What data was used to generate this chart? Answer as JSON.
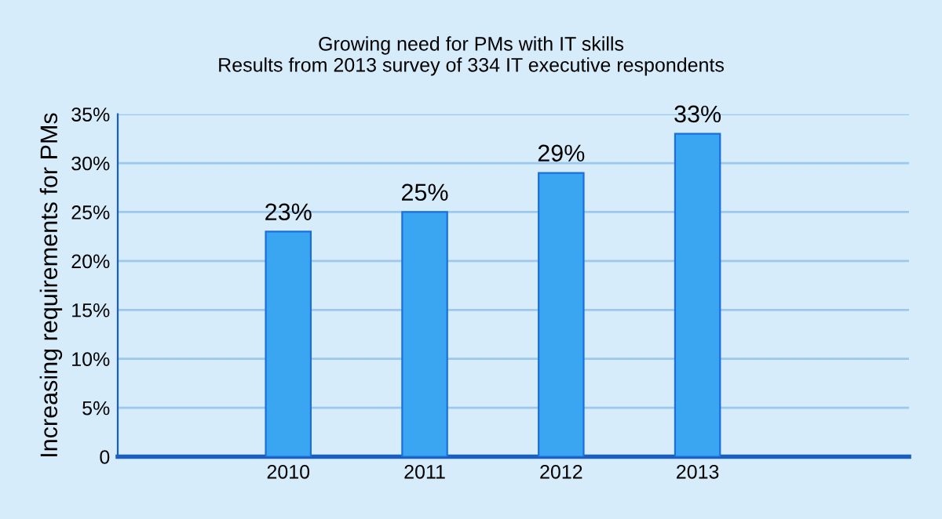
{
  "chart_data": {
    "type": "bar",
    "title": "Growing need for PMs with IT skills\nResults from 2013 survey of 334 IT executive respondents",
    "ylabel": "Increasing requirements for PMs",
    "categories": [
      "2010",
      "2011",
      "2012",
      "2013"
    ],
    "values": [
      23,
      25,
      29,
      33
    ],
    "value_labels": [
      "23%",
      "25%",
      "29%",
      "33%"
    ],
    "color": "#3aa6f2",
    "ylim": [
      0,
      35
    ],
    "yticks": [
      0,
      {
        "value": 5,
        "label": "5%"
      },
      {
        "value": 10,
        "label": "10%"
      },
      {
        "value": 15,
        "label": "15%"
      },
      {
        "value": 20,
        "label": "20%"
      },
      {
        "value": 25,
        "label": "25%"
      },
      {
        "value": 30,
        "label": "30%"
      },
      {
        "value": 35,
        "label": "35%"
      }
    ],
    "grid": "y"
  }
}
